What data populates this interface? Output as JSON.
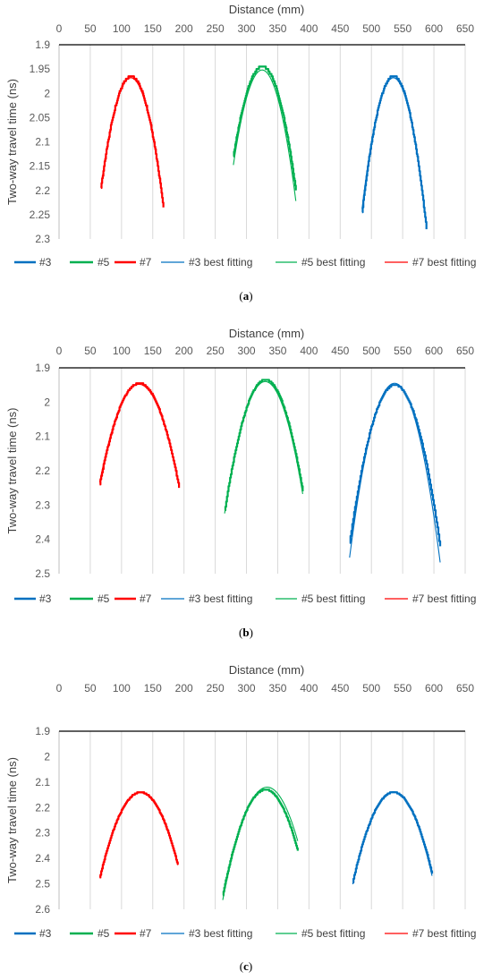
{
  "chart_data": [
    {
      "type": "line",
      "caption": "(a)",
      "caption_letter": "a",
      "xlabel": "Distance (mm)",
      "ylabel": "Two-way travel time (ns)",
      "xlim": [
        0,
        650
      ],
      "ylim": [
        1.9,
        2.3
      ],
      "x_axis_position": "top",
      "y_inverted": true,
      "grid": "vertical",
      "legend_position": "bottom",
      "x_ticks": [
        "0",
        "50",
        "100",
        "150",
        "200",
        "250",
        "300",
        "350",
        "400",
        "450",
        "500",
        "550",
        "600",
        "650"
      ],
      "y_ticks": [
        "1.9",
        "1.95",
        "2",
        "2.05",
        "2.1",
        "2.15",
        "2.2",
        "2.25",
        "2.3"
      ],
      "series": [
        {
          "name": "#3",
          "color": "#0070C0",
          "style": "measured",
          "vertex": [
            535,
            1.965
          ],
          "a": 0.000112,
          "x_range": [
            485,
            588
          ]
        },
        {
          "name": "#5",
          "color": "#00B050",
          "style": "measured",
          "vertex": [
            325,
            1.945
          ],
          "a": 8.75e-05,
          "x_range": [
            279,
            379
          ]
        },
        {
          "name": "#7",
          "color": "#FF0000",
          "style": "measured",
          "vertex": [
            115,
            1.965
          ],
          "a": 0.0001,
          "x_range": [
            67,
            167
          ]
        },
        {
          "name": "#3 best fitting",
          "color": "#0070C0",
          "style": "fit",
          "vertex": [
            535,
            1.968
          ],
          "a": 0.000108,
          "x_range": [
            485,
            588
          ]
        },
        {
          "name": "#5 best fitting",
          "color": "#00B050",
          "style": "fit",
          "vertex": [
            325,
            1.952
          ],
          "a": 9.25e-05,
          "x_range": [
            279,
            379
          ]
        },
        {
          "name": "#7 best fitting",
          "color": "#FF0000",
          "style": "fit",
          "vertex": [
            115,
            1.968
          ],
          "a": 9.8e-05,
          "x_range": [
            67,
            167
          ]
        }
      ]
    },
    {
      "type": "line",
      "caption": "(b)",
      "caption_letter": "b",
      "xlabel": "Distance (mm)",
      "ylabel": "Two-way travel time (ns)",
      "xlim": [
        0,
        650
      ],
      "ylim": [
        1.9,
        2.5
      ],
      "x_axis_position": "top",
      "y_inverted": true,
      "grid": "vertical",
      "legend_position": "bottom",
      "x_ticks": [
        "0",
        "50",
        "100",
        "150",
        "200",
        "250",
        "300",
        "350",
        "400",
        "450",
        "500",
        "550",
        "600",
        "650"
      ],
      "y_ticks": [
        "1.9",
        "2",
        "2.1",
        "2.2",
        "2.3",
        "2.4",
        "2.5"
      ],
      "series": [
        {
          "name": "#3",
          "color": "#0070C0",
          "style": "measured",
          "vertex": [
            537,
            1.95
          ],
          "a": 8.85e-05,
          "x_range": [
            465,
            610
          ]
        },
        {
          "name": "#5",
          "color": "#00B050",
          "style": "measured",
          "vertex": [
            330,
            1.935
          ],
          "a": 9.05e-05,
          "x_range": [
            265,
            390
          ]
        },
        {
          "name": "#7",
          "color": "#FF0000",
          "style": "measured",
          "vertex": [
            128,
            1.945
          ],
          "a": 7.4e-05,
          "x_range": [
            65,
            192
          ]
        },
        {
          "name": "#3 best fitting",
          "color": "#0070C0",
          "style": "fit",
          "vertex": [
            537,
            1.945
          ],
          "a": 9.8e-05,
          "x_range": [
            465,
            610
          ]
        },
        {
          "name": "#5 best fitting",
          "color": "#00B050",
          "style": "fit",
          "vertex": [
            330,
            1.94
          ],
          "a": 9.1e-05,
          "x_range": [
            265,
            390
          ]
        },
        {
          "name": "#7 best fitting",
          "color": "#FF0000",
          "style": "fit",
          "vertex": [
            128,
            1.948
          ],
          "a": 7.2e-05,
          "x_range": [
            65,
            192
          ]
        }
      ]
    },
    {
      "type": "line",
      "caption": "(c)",
      "caption_letter": "c",
      "xlabel": "Distance (mm)",
      "ylabel": "Two-way travel time (ns)",
      "xlim": [
        0,
        650
      ],
      "ylim": [
        1.9,
        2.6
      ],
      "x_axis_position": "top",
      "y_inverted": true,
      "grid": "vertical",
      "legend_position": "bottom",
      "x_ticks": [
        "0",
        "50",
        "100",
        "150",
        "200",
        "250",
        "300",
        "350",
        "400",
        "450",
        "500",
        "550",
        "600",
        "650"
      ],
      "y_ticks": [
        "1.9",
        "2",
        "2.1",
        "2.2",
        "2.3",
        "2.4",
        "2.5",
        "2.6"
      ],
      "series": [
        {
          "name": "#3",
          "color": "#0070C0",
          "style": "measured",
          "vertex": [
            535,
            2.14
          ],
          "a": 8.35e-05,
          "x_range": [
            470,
            597
          ]
        },
        {
          "name": "#5",
          "color": "#00B050",
          "style": "measured",
          "vertex": [
            330,
            2.13
          ],
          "a": 8.95e-05,
          "x_range": [
            262,
            382
          ]
        },
        {
          "name": "#7",
          "color": "#FF0000",
          "style": "measured",
          "vertex": [
            130,
            2.14
          ],
          "a": 7.95e-05,
          "x_range": [
            65,
            190
          ]
        },
        {
          "name": "#3 best fitting",
          "color": "#0070C0",
          "style": "fit",
          "vertex": [
            535,
            2.138
          ],
          "a": 8.6e-05,
          "x_range": [
            470,
            597
          ]
        },
        {
          "name": "#5 best fitting",
          "color": "#00B050",
          "style": "fit",
          "vertex": [
            333,
            2.12
          ],
          "a": 8.8e-05,
          "x_range": [
            262,
            382
          ]
        },
        {
          "name": "#7 best fitting",
          "color": "#FF0000",
          "style": "fit",
          "vertex": [
            130,
            2.142
          ],
          "a": 7.9e-05,
          "x_range": [
            65,
            190
          ]
        }
      ]
    }
  ]
}
